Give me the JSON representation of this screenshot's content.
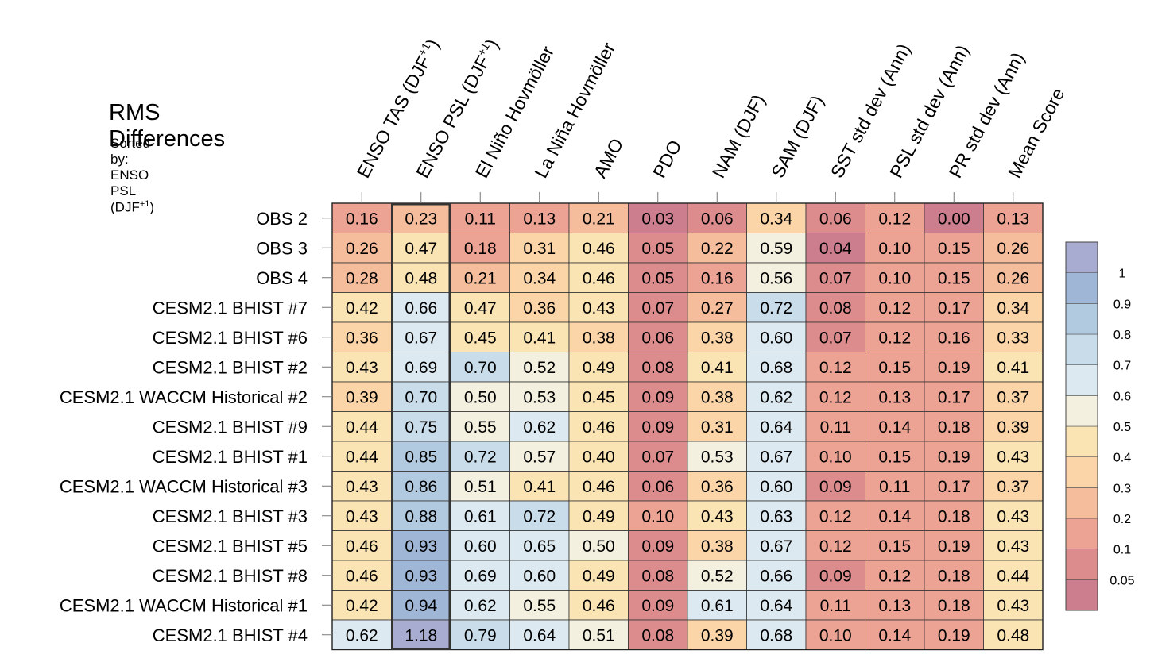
{
  "chart_data": {
    "type": "heatmap",
    "title": "RMS Differences",
    "subtitle_prefix": "Sorted by: ENSO PSL (DJF",
    "subtitle_sup": "+1",
    "subtitle_suffix": ")",
    "highlighted_column": "ENSO PSL (DJF+1)",
    "columns": [
      {
        "name": "ENSO TAS (DJF+1)",
        "base": "ENSO TAS (DJF",
        "sup": "+1",
        "tail": ")"
      },
      {
        "name": "ENSO PSL (DJF+1)",
        "base": "ENSO PSL (DJF",
        "sup": "+1",
        "tail": ")"
      },
      {
        "name": "El Niño Hovmöller",
        "base": "El Niño Hovmöller",
        "sup": "",
        "tail": ""
      },
      {
        "name": "La Niña Hovmöller",
        "base": "La Niña Hovmöller",
        "sup": "",
        "tail": ""
      },
      {
        "name": "AMO",
        "base": "AMO",
        "sup": "",
        "tail": ""
      },
      {
        "name": "PDO",
        "base": "PDO",
        "sup": "",
        "tail": ""
      },
      {
        "name": "NAM (DJF)",
        "base": "NAM (DJF)",
        "sup": "",
        "tail": ""
      },
      {
        "name": "SAM (DJF)",
        "base": "SAM (DJF)",
        "sup": "",
        "tail": ""
      },
      {
        "name": "SST std dev (Ann)",
        "base": "SST std dev (Ann)",
        "sup": "",
        "tail": ""
      },
      {
        "name": "PSL std dev (Ann)",
        "base": "PSL std dev (Ann)",
        "sup": "",
        "tail": ""
      },
      {
        "name": "PR std dev (Ann)",
        "base": "PR std dev (Ann)",
        "sup": "",
        "tail": ""
      },
      {
        "name": "Mean Score",
        "base": "Mean Score",
        "sup": "",
        "tail": ""
      }
    ],
    "rows": [
      "OBS 2",
      "OBS 3",
      "OBS 4",
      "CESM2.1 BHIST #7",
      "CESM2.1 BHIST #6",
      "CESM2.1 BHIST #2",
      "CESM2.1 WACCM Historical #2",
      "CESM2.1 BHIST #9",
      "CESM2.1 BHIST #1",
      "CESM2.1 WACCM Historical #3",
      "CESM2.1 BHIST #3",
      "CESM2.1 BHIST #5",
      "CESM2.1 BHIST #8",
      "CESM2.1 WACCM Historical #1",
      "CESM2.1 BHIST #4"
    ],
    "values": [
      [
        "0.16",
        "0.23",
        "0.11",
        "0.13",
        "0.21",
        "0.03",
        "0.06",
        "0.34",
        "0.06",
        "0.12",
        "0.00",
        "0.13"
      ],
      [
        "0.26",
        "0.47",
        "0.18",
        "0.31",
        "0.46",
        "0.05",
        "0.22",
        "0.59",
        "0.04",
        "0.10",
        "0.15",
        "0.26"
      ],
      [
        "0.28",
        "0.48",
        "0.21",
        "0.34",
        "0.46",
        "0.05",
        "0.16",
        "0.56",
        "0.07",
        "0.10",
        "0.15",
        "0.26"
      ],
      [
        "0.42",
        "0.66",
        "0.47",
        "0.36",
        "0.43",
        "0.07",
        "0.27",
        "0.72",
        "0.08",
        "0.12",
        "0.17",
        "0.34"
      ],
      [
        "0.36",
        "0.67",
        "0.45",
        "0.41",
        "0.38",
        "0.06",
        "0.38",
        "0.60",
        "0.07",
        "0.12",
        "0.16",
        "0.33"
      ],
      [
        "0.43",
        "0.69",
        "0.70",
        "0.52",
        "0.49",
        "0.08",
        "0.41",
        "0.68",
        "0.12",
        "0.15",
        "0.19",
        "0.41"
      ],
      [
        "0.39",
        "0.70",
        "0.50",
        "0.53",
        "0.45",
        "0.09",
        "0.38",
        "0.62",
        "0.12",
        "0.13",
        "0.17",
        "0.37"
      ],
      [
        "0.44",
        "0.75",
        "0.55",
        "0.62",
        "0.46",
        "0.09",
        "0.31",
        "0.64",
        "0.11",
        "0.14",
        "0.18",
        "0.39"
      ],
      [
        "0.44",
        "0.85",
        "0.72",
        "0.57",
        "0.40",
        "0.07",
        "0.53",
        "0.67",
        "0.10",
        "0.15",
        "0.19",
        "0.43"
      ],
      [
        "0.43",
        "0.86",
        "0.51",
        "0.41",
        "0.46",
        "0.06",
        "0.36",
        "0.60",
        "0.09",
        "0.11",
        "0.17",
        "0.37"
      ],
      [
        "0.43",
        "0.88",
        "0.61",
        "0.72",
        "0.49",
        "0.10",
        "0.43",
        "0.63",
        "0.12",
        "0.14",
        "0.18",
        "0.43"
      ],
      [
        "0.46",
        "0.93",
        "0.60",
        "0.65",
        "0.50",
        "0.09",
        "0.38",
        "0.67",
        "0.12",
        "0.15",
        "0.19",
        "0.43"
      ],
      [
        "0.46",
        "0.93",
        "0.69",
        "0.60",
        "0.49",
        "0.08",
        "0.52",
        "0.66",
        "0.09",
        "0.12",
        "0.18",
        "0.44"
      ],
      [
        "0.42",
        "0.94",
        "0.62",
        "0.55",
        "0.46",
        "0.09",
        "0.61",
        "0.64",
        "0.11",
        "0.13",
        "0.18",
        "0.43"
      ],
      [
        "0.62",
        "1.18",
        "0.79",
        "0.64",
        "0.51",
        "0.08",
        "0.39",
        "0.68",
        "0.10",
        "0.14",
        "0.19",
        "0.48"
      ]
    ],
    "colorbar": {
      "levels": [
        "0.05",
        "0.1",
        "0.2",
        "0.3",
        "0.4",
        "0.5",
        "0.6",
        "0.7",
        "0.8",
        "0.9",
        "1"
      ],
      "colors": [
        "#cc7e8e",
        "#dc8c8c",
        "#eca393",
        "#f5bd9c",
        "#fbd5a8",
        "#fbe4b4",
        "#f3f0e0",
        "#dde9f0",
        "#c8dcea",
        "#b2cae0",
        "#9fb6d6",
        "#a8acd0"
      ]
    }
  }
}
